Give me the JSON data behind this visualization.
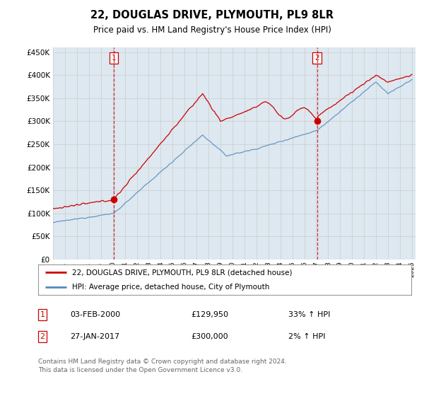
{
  "title": "22, DOUGLAS DRIVE, PLYMOUTH, PL9 8LR",
  "subtitle": "Price paid vs. HM Land Registry's House Price Index (HPI)",
  "ylim": [
    0,
    460000
  ],
  "yticks": [
    0,
    50000,
    100000,
    150000,
    200000,
    250000,
    300000,
    350000,
    400000,
    450000
  ],
  "ytick_labels": [
    "£0",
    "£50K",
    "£100K",
    "£150K",
    "£200K",
    "£250K",
    "£300K",
    "£350K",
    "£400K",
    "£450K"
  ],
  "sale1_date": 2000.08,
  "sale1_price": 129950,
  "sale2_date": 2017.07,
  "sale2_price": 300000,
  "legend_line1": "22, DOUGLAS DRIVE, PLYMOUTH, PL9 8LR (detached house)",
  "legend_line2": "HPI: Average price, detached house, City of Plymouth",
  "table_row1": [
    "1",
    "03-FEB-2000",
    "£129,950",
    "33% ↑ HPI"
  ],
  "table_row2": [
    "2",
    "27-JAN-2017",
    "£300,000",
    "2% ↑ HPI"
  ],
  "footer": "Contains HM Land Registry data © Crown copyright and database right 2024.\nThis data is licensed under the Open Government Licence v3.0.",
  "line_color_red": "#cc0000",
  "line_color_blue": "#5588bb",
  "fill_color": "#dde8f0",
  "background_color": "#ffffff",
  "grid_color": "#cccccc"
}
